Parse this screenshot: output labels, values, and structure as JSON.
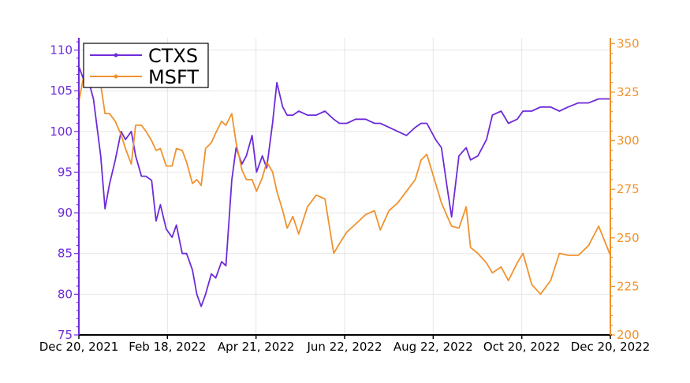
{
  "chart_data": {
    "type": "line",
    "title": "",
    "xlabel": "",
    "ylabel_left": "",
    "ylabel_right": "",
    "x_ticks": [
      "Dec 20, 2021",
      "Feb 18, 2022",
      "Apr 21, 2022",
      "Jun 22, 2022",
      "Aug 22, 2022",
      "Oct 20, 2022",
      "Dec 20, 2022"
    ],
    "xlim": [
      "2021-12-20",
      "2022-12-20"
    ],
    "ylim_left": [
      75,
      111.5
    ],
    "ylim_right": [
      200,
      353
    ],
    "y_ticks_left": [
      75,
      80,
      85,
      90,
      95,
      100,
      105,
      110
    ],
    "y_ticks_right": [
      200,
      225,
      250,
      275,
      300,
      325,
      350
    ],
    "grid": true,
    "legend_position": "top-left",
    "series": [
      {
        "name": "CTXS",
        "axis": "left",
        "color": "#6d2bd9",
        "points": [
          [
            "2021-12-20",
            108
          ],
          [
            "2021-12-23",
            106.5
          ],
          [
            "2021-12-27",
            106
          ],
          [
            "2021-12-30",
            104
          ],
          [
            "2022-01-04",
            97
          ],
          [
            "2022-01-07",
            90.5
          ],
          [
            "2022-01-10",
            93.5
          ],
          [
            "2022-01-14",
            96.5
          ],
          [
            "2022-01-18",
            100
          ],
          [
            "2022-01-21",
            99
          ],
          [
            "2022-01-25",
            100
          ],
          [
            "2022-01-28",
            97
          ],
          [
            "2022-02-01",
            94.5
          ],
          [
            "2022-02-04",
            94.5
          ],
          [
            "2022-02-08",
            94
          ],
          [
            "2022-02-11",
            89
          ],
          [
            "2022-02-14",
            91
          ],
          [
            "2022-02-18",
            88
          ],
          [
            "2022-02-22",
            87
          ],
          [
            "2022-02-25",
            88.5
          ],
          [
            "2022-03-01",
            85
          ],
          [
            "2022-03-04",
            85
          ],
          [
            "2022-03-08",
            83
          ],
          [
            "2022-03-11",
            80
          ],
          [
            "2022-03-14",
            78.5
          ],
          [
            "2022-03-17",
            80
          ],
          [
            "2022-03-21",
            82.5
          ],
          [
            "2022-03-24",
            82
          ],
          [
            "2022-03-28",
            84
          ],
          [
            "2022-03-31",
            83.5
          ],
          [
            "2022-04-04",
            94
          ],
          [
            "2022-04-07",
            98
          ],
          [
            "2022-04-11",
            96
          ],
          [
            "2022-04-14",
            97
          ],
          [
            "2022-04-18",
            99.5
          ],
          [
            "2022-04-21",
            95
          ],
          [
            "2022-04-25",
            97
          ],
          [
            "2022-04-28",
            95.5
          ],
          [
            "2022-05-02",
            101
          ],
          [
            "2022-05-05",
            106
          ],
          [
            "2022-05-09",
            103
          ],
          [
            "2022-05-12",
            102
          ],
          [
            "2022-05-16",
            102
          ],
          [
            "2022-05-20",
            102.5
          ],
          [
            "2022-05-26",
            102
          ],
          [
            "2022-06-01",
            102
          ],
          [
            "2022-06-07",
            102.5
          ],
          [
            "2022-06-13",
            101.5
          ],
          [
            "2022-06-17",
            101
          ],
          [
            "2022-06-22",
            101
          ],
          [
            "2022-06-28",
            101.5
          ],
          [
            "2022-07-05",
            101.5
          ],
          [
            "2022-07-11",
            101
          ],
          [
            "2022-07-15",
            101
          ],
          [
            "2022-07-21",
            100.5
          ],
          [
            "2022-07-27",
            100
          ],
          [
            "2022-08-02",
            99.5
          ],
          [
            "2022-08-08",
            100.5
          ],
          [
            "2022-08-12",
            101
          ],
          [
            "2022-08-16",
            101
          ],
          [
            "2022-08-22",
            99
          ],
          [
            "2022-08-26",
            98
          ],
          [
            "2022-08-30",
            93
          ],
          [
            "2022-09-02",
            89.5
          ],
          [
            "2022-09-07",
            97
          ],
          [
            "2022-09-12",
            98
          ],
          [
            "2022-09-15",
            96.5
          ],
          [
            "2022-09-20",
            97
          ],
          [
            "2022-09-26",
            99
          ],
          [
            "2022-09-30",
            102
          ],
          [
            "2022-10-06",
            102.5
          ],
          [
            "2022-10-11",
            101
          ],
          [
            "2022-10-17",
            101.5
          ],
          [
            "2022-10-21",
            102.5
          ],
          [
            "2022-10-27",
            102.5
          ],
          [
            "2022-11-02",
            103
          ],
          [
            "2022-11-09",
            103
          ],
          [
            "2022-11-15",
            102.5
          ],
          [
            "2022-11-21",
            103
          ],
          [
            "2022-11-28",
            103.5
          ],
          [
            "2022-12-05",
            103.5
          ],
          [
            "2022-12-12",
            104
          ],
          [
            "2022-12-20",
            104
          ]
        ]
      },
      {
        "name": "MSFT",
        "axis": "right",
        "color": "#f0922e",
        "points": [
          [
            "2021-12-20",
            320
          ],
          [
            "2021-12-23",
            332
          ],
          [
            "2021-12-27",
            343
          ],
          [
            "2021-12-30",
            335
          ],
          [
            "2022-01-04",
            329
          ],
          [
            "2022-01-07",
            314
          ],
          [
            "2022-01-10",
            314
          ],
          [
            "2022-01-14",
            310
          ],
          [
            "2022-01-18",
            303
          ],
          [
            "2022-01-21",
            296
          ],
          [
            "2022-01-25",
            288
          ],
          [
            "2022-01-28",
            308
          ],
          [
            "2022-02-01",
            308
          ],
          [
            "2022-02-04",
            305
          ],
          [
            "2022-02-08",
            300
          ],
          [
            "2022-02-11",
            295
          ],
          [
            "2022-02-14",
            296
          ],
          [
            "2022-02-18",
            287
          ],
          [
            "2022-02-22",
            287
          ],
          [
            "2022-02-25",
            296
          ],
          [
            "2022-03-01",
            295
          ],
          [
            "2022-03-04",
            289
          ],
          [
            "2022-03-08",
            278
          ],
          [
            "2022-03-11",
            280
          ],
          [
            "2022-03-14",
            277
          ],
          [
            "2022-03-17",
            296
          ],
          [
            "2022-03-21",
            299
          ],
          [
            "2022-03-24",
            304
          ],
          [
            "2022-03-28",
            310
          ],
          [
            "2022-03-31",
            308
          ],
          [
            "2022-04-04",
            314
          ],
          [
            "2022-04-07",
            299
          ],
          [
            "2022-04-11",
            285
          ],
          [
            "2022-04-14",
            280
          ],
          [
            "2022-04-18",
            280
          ],
          [
            "2022-04-21",
            274
          ],
          [
            "2022-04-25",
            281
          ],
          [
            "2022-04-28",
            289
          ],
          [
            "2022-05-02",
            284
          ],
          [
            "2022-05-05",
            274
          ],
          [
            "2022-05-09",
            264
          ],
          [
            "2022-05-12",
            255
          ],
          [
            "2022-05-16",
            261
          ],
          [
            "2022-05-20",
            252
          ],
          [
            "2022-05-26",
            266
          ],
          [
            "2022-06-01",
            272
          ],
          [
            "2022-06-07",
            270
          ],
          [
            "2022-06-13",
            242
          ],
          [
            "2022-06-17",
            247
          ],
          [
            "2022-06-22",
            253
          ],
          [
            "2022-06-28",
            257
          ],
          [
            "2022-07-05",
            262
          ],
          [
            "2022-07-11",
            264
          ],
          [
            "2022-07-15",
            254
          ],
          [
            "2022-07-21",
            264
          ],
          [
            "2022-07-27",
            268
          ],
          [
            "2022-08-02",
            274
          ],
          [
            "2022-08-08",
            280
          ],
          [
            "2022-08-12",
            290
          ],
          [
            "2022-08-16",
            293
          ],
          [
            "2022-08-22",
            278
          ],
          [
            "2022-08-26",
            268
          ],
          [
            "2022-08-30",
            261
          ],
          [
            "2022-09-02",
            256
          ],
          [
            "2022-09-07",
            255
          ],
          [
            "2022-09-12",
            266
          ],
          [
            "2022-09-15",
            245
          ],
          [
            "2022-09-20",
            242
          ],
          [
            "2022-09-26",
            237
          ],
          [
            "2022-09-30",
            232
          ],
          [
            "2022-10-06",
            235
          ],
          [
            "2022-10-11",
            228
          ],
          [
            "2022-10-17",
            237
          ],
          [
            "2022-10-21",
            242
          ],
          [
            "2022-10-27",
            226
          ],
          [
            "2022-11-02",
            221
          ],
          [
            "2022-11-09",
            228
          ],
          [
            "2022-11-15",
            242
          ],
          [
            "2022-11-21",
            241
          ],
          [
            "2022-11-28",
            241
          ],
          [
            "2022-12-05",
            246
          ],
          [
            "2022-12-12",
            256
          ],
          [
            "2022-12-20",
            241
          ]
        ]
      }
    ]
  }
}
